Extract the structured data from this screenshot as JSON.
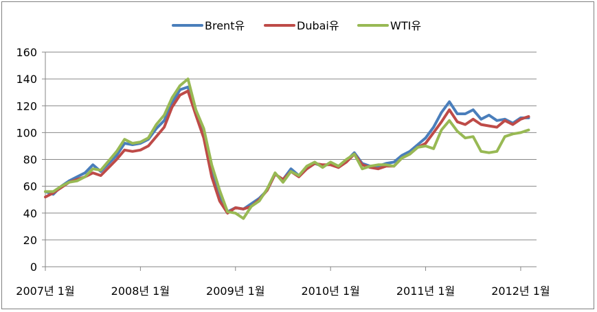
{
  "chart_data": {
    "type": "line",
    "title": "",
    "xlabel": "",
    "ylabel": "",
    "ylim": [
      0,
      160
    ],
    "yticks": [
      0,
      20,
      40,
      60,
      80,
      100,
      120,
      140,
      160
    ],
    "xlim": [
      "2007-01",
      "2012-03"
    ],
    "xticks": [
      {
        "x": "2007-01",
        "label": "2007년 1월"
      },
      {
        "x": "2008-01",
        "label": "2008년 1월"
      },
      {
        "x": "2009-01",
        "label": "2009년 1월"
      },
      {
        "x": "2010-01",
        "label": "2010년 1월"
      },
      {
        "x": "2011-01",
        "label": "2011년 1월"
      },
      {
        "x": "2012-01",
        "label": "2012년 1월"
      }
    ],
    "grid": "horizontal",
    "legend_position": "top",
    "series": [
      {
        "name": "Brent유",
        "color": "#4a7ebb",
        "points": [
          [
            "2007-01",
            56
          ],
          [
            "2007-02",
            54
          ],
          [
            "2007-03",
            60
          ],
          [
            "2007-04",
            64
          ],
          [
            "2007-05",
            67
          ],
          [
            "2007-06",
            70
          ],
          [
            "2007-07",
            76
          ],
          [
            "2007-08",
            71
          ],
          [
            "2007-09",
            77
          ],
          [
            "2007-10",
            83
          ],
          [
            "2007-11",
            92
          ],
          [
            "2007-12",
            91
          ],
          [
            "2008-01",
            92
          ],
          [
            "2008-02",
            95
          ],
          [
            "2008-03",
            103
          ],
          [
            "2008-04",
            109
          ],
          [
            "2008-05",
            122
          ],
          [
            "2008-06",
            132
          ],
          [
            "2008-07",
            134
          ],
          [
            "2008-08",
            114
          ],
          [
            "2008-09",
            99
          ],
          [
            "2008-10",
            72
          ],
          [
            "2008-11",
            53
          ],
          [
            "2008-12",
            41
          ],
          [
            "2009-01",
            44
          ],
          [
            "2009-02",
            43
          ],
          [
            "2009-03",
            47
          ],
          [
            "2009-04",
            51
          ],
          [
            "2009-05",
            57
          ],
          [
            "2009-06",
            69
          ],
          [
            "2009-07",
            65
          ],
          [
            "2009-08",
            73
          ],
          [
            "2009-09",
            68
          ],
          [
            "2009-10",
            73
          ],
          [
            "2009-11",
            77
          ],
          [
            "2009-12",
            75
          ],
          [
            "2010-01",
            77
          ],
          [
            "2010-02",
            74
          ],
          [
            "2010-03",
            79
          ],
          [
            "2010-04",
            85
          ],
          [
            "2010-05",
            77
          ],
          [
            "2010-06",
            75
          ],
          [
            "2010-07",
            75
          ],
          [
            "2010-08",
            77
          ],
          [
            "2010-09",
            78
          ],
          [
            "2010-10",
            83
          ],
          [
            "2010-11",
            86
          ],
          [
            "2010-12",
            91
          ],
          [
            "2011-01",
            96
          ],
          [
            "2011-02",
            104
          ],
          [
            "2011-03",
            115
          ],
          [
            "2011-04",
            123
          ],
          [
            "2011-05",
            114
          ],
          [
            "2011-06",
            114
          ],
          [
            "2011-07",
            117
          ],
          [
            "2011-08",
            110
          ],
          [
            "2011-09",
            113
          ],
          [
            "2011-10",
            109
          ],
          [
            "2011-11",
            110
          ],
          [
            "2011-12",
            107
          ],
          [
            "2012-01",
            111
          ],
          [
            "2012-02",
            111
          ]
        ]
      },
      {
        "name": "Dubai유",
        "color": "#be4b48",
        "points": [
          [
            "2007-01",
            52
          ],
          [
            "2007-02",
            55
          ],
          [
            "2007-03",
            59
          ],
          [
            "2007-04",
            63
          ],
          [
            "2007-05",
            65
          ],
          [
            "2007-06",
            67
          ],
          [
            "2007-07",
            70
          ],
          [
            "2007-08",
            68
          ],
          [
            "2007-09",
            74
          ],
          [
            "2007-10",
            80
          ],
          [
            "2007-11",
            87
          ],
          [
            "2007-12",
            86
          ],
          [
            "2008-01",
            87
          ],
          [
            "2008-02",
            90
          ],
          [
            "2008-03",
            97
          ],
          [
            "2008-04",
            104
          ],
          [
            "2008-05",
            119
          ],
          [
            "2008-06",
            128
          ],
          [
            "2008-07",
            131
          ],
          [
            "2008-08",
            113
          ],
          [
            "2008-09",
            96
          ],
          [
            "2008-10",
            67
          ],
          [
            "2008-11",
            49
          ],
          [
            "2008-12",
            40
          ],
          [
            "2009-01",
            44
          ],
          [
            "2009-02",
            43
          ],
          [
            "2009-03",
            45
          ],
          [
            "2009-04",
            50
          ],
          [
            "2009-05",
            57
          ],
          [
            "2009-06",
            69
          ],
          [
            "2009-07",
            65
          ],
          [
            "2009-08",
            71
          ],
          [
            "2009-09",
            67
          ],
          [
            "2009-10",
            73
          ],
          [
            "2009-11",
            77
          ],
          [
            "2009-12",
            76
          ],
          [
            "2010-01",
            76
          ],
          [
            "2010-02",
            74
          ],
          [
            "2010-03",
            78
          ],
          [
            "2010-04",
            84
          ],
          [
            "2010-05",
            76
          ],
          [
            "2010-06",
            74
          ],
          [
            "2010-07",
            73
          ],
          [
            "2010-08",
            75
          ],
          [
            "2010-09",
            75
          ],
          [
            "2010-10",
            81
          ],
          [
            "2010-11",
            84
          ],
          [
            "2010-12",
            89
          ],
          [
            "2011-01",
            92
          ],
          [
            "2011-02",
            100
          ],
          [
            "2011-03",
            108
          ],
          [
            "2011-04",
            117
          ],
          [
            "2011-05",
            108
          ],
          [
            "2011-06",
            106
          ],
          [
            "2011-07",
            110
          ],
          [
            "2011-08",
            106
          ],
          [
            "2011-09",
            105
          ],
          [
            "2011-10",
            104
          ],
          [
            "2011-11",
            109
          ],
          [
            "2011-12",
            106
          ],
          [
            "2012-01",
            110
          ],
          [
            "2012-02",
            112
          ]
        ]
      },
      {
        "name": "WTI유",
        "color": "#98b954",
        "points": [
          [
            "2007-01",
            56
          ],
          [
            "2007-02",
            56
          ],
          [
            "2007-03",
            60
          ],
          [
            "2007-04",
            63
          ],
          [
            "2007-05",
            64
          ],
          [
            "2007-06",
            67
          ],
          [
            "2007-07",
            73
          ],
          [
            "2007-08",
            72
          ],
          [
            "2007-09",
            79
          ],
          [
            "2007-10",
            86
          ],
          [
            "2007-11",
            95
          ],
          [
            "2007-12",
            92
          ],
          [
            "2008-01",
            93
          ],
          [
            "2008-02",
            96
          ],
          [
            "2008-03",
            106
          ],
          [
            "2008-04",
            113
          ],
          [
            "2008-05",
            126
          ],
          [
            "2008-06",
            135
          ],
          [
            "2008-07",
            140
          ],
          [
            "2008-08",
            117
          ],
          [
            "2008-09",
            103
          ],
          [
            "2008-10",
            76
          ],
          [
            "2008-11",
            57
          ],
          [
            "2008-12",
            41
          ],
          [
            "2009-01",
            40
          ],
          [
            "2009-02",
            36
          ],
          [
            "2009-03",
            45
          ],
          [
            "2009-04",
            49
          ],
          [
            "2009-05",
            58
          ],
          [
            "2009-06",
            70
          ],
          [
            "2009-07",
            63
          ],
          [
            "2009-08",
            71
          ],
          [
            "2009-09",
            68
          ],
          [
            "2009-10",
            75
          ],
          [
            "2009-11",
            78
          ],
          [
            "2009-12",
            74
          ],
          [
            "2010-01",
            78
          ],
          [
            "2010-02",
            75
          ],
          [
            "2010-03",
            80
          ],
          [
            "2010-04",
            84
          ],
          [
            "2010-05",
            73
          ],
          [
            "2010-06",
            75
          ],
          [
            "2010-07",
            76
          ],
          [
            "2010-08",
            76
          ],
          [
            "2010-09",
            75
          ],
          [
            "2010-10",
            81
          ],
          [
            "2010-11",
            84
          ],
          [
            "2010-12",
            89
          ],
          [
            "2011-01",
            90
          ],
          [
            "2011-02",
            88
          ],
          [
            "2011-03",
            102
          ],
          [
            "2011-04",
            109
          ],
          [
            "2011-05",
            101
          ],
          [
            "2011-06",
            96
          ],
          [
            "2011-07",
            97
          ],
          [
            "2011-08",
            86
          ],
          [
            "2011-09",
            85
          ],
          [
            "2011-10",
            86
          ],
          [
            "2011-11",
            97
          ],
          [
            "2011-12",
            99
          ],
          [
            "2012-01",
            100
          ],
          [
            "2012-02",
            102
          ]
        ]
      }
    ]
  }
}
